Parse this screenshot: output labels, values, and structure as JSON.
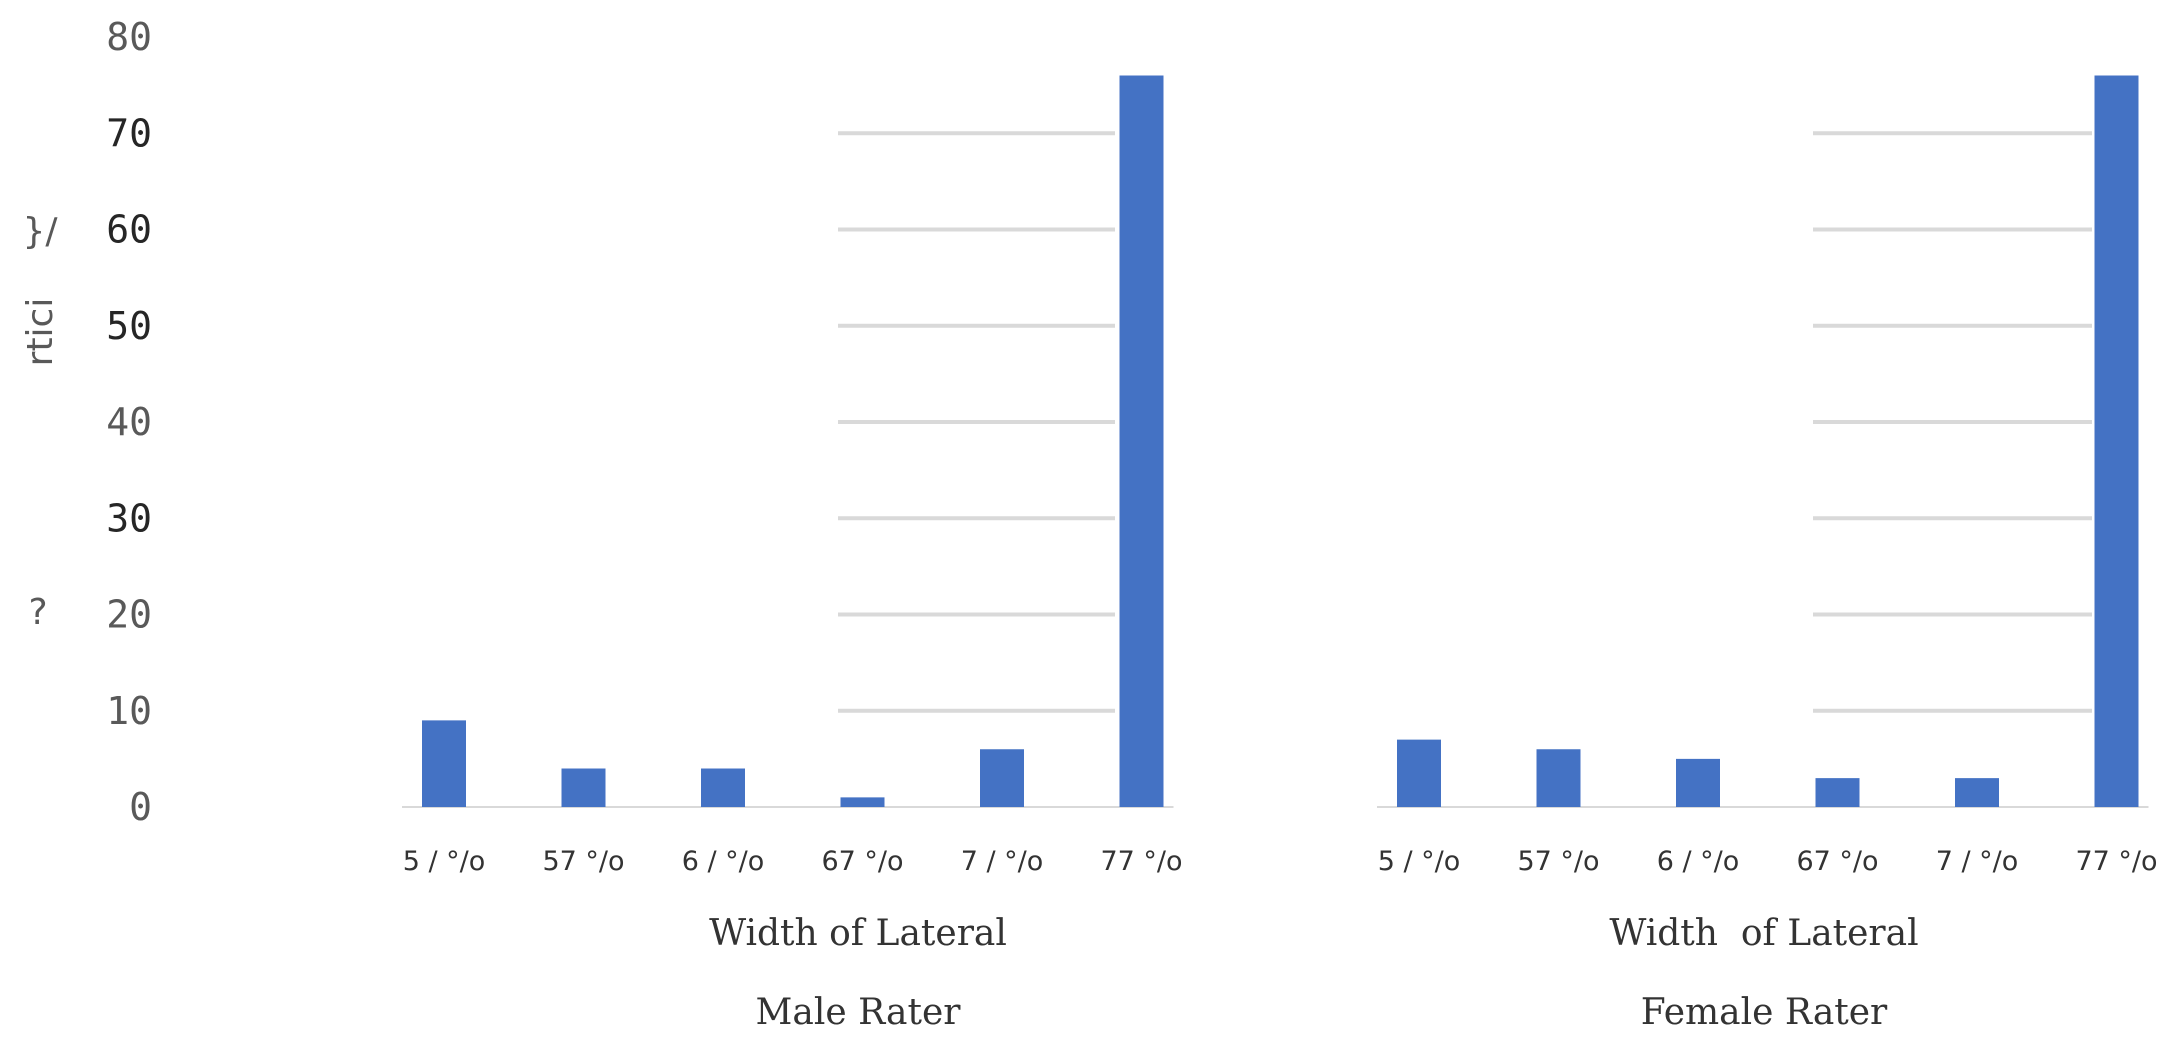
{
  "chart_data": [
    {
      "type": "bar",
      "title": "Male Rater",
      "xlabel": "Width of Lateral",
      "ylabel": "rtici",
      "categories": [
        "5 / °/o",
        "57 °/o",
        "6 / °/o",
        "67 °/o",
        "7 / °/o",
        "77 °/o"
      ],
      "values": [
        9,
        4,
        4,
        1,
        6,
        76
      ],
      "ylim": [
        0,
        80
      ],
      "yticks": [
        "0",
        "10",
        "20",
        "30",
        "40",
        "50",
        "60",
        "70",
        "80"
      ],
      "grid": "partial, from 4th category to the last bar",
      "bar_color": "#4472c4"
    },
    {
      "type": "bar",
      "title": "Female Rater",
      "xlabel": "Width  of Lateral",
      "categories": [
        "5 / °/o",
        "57 °/o",
        "6 / °/o",
        "67 °/o",
        "7 / °/o",
        "77 °/o"
      ],
      "values": [
        7,
        6,
        5,
        3,
        3,
        76
      ],
      "ylim": [
        0,
        80
      ],
      "grid": "partial, from 4th category to the last bar",
      "bar_color": "#4472c4"
    }
  ],
  "side_marks": [
    "}/",
    "?"
  ]
}
